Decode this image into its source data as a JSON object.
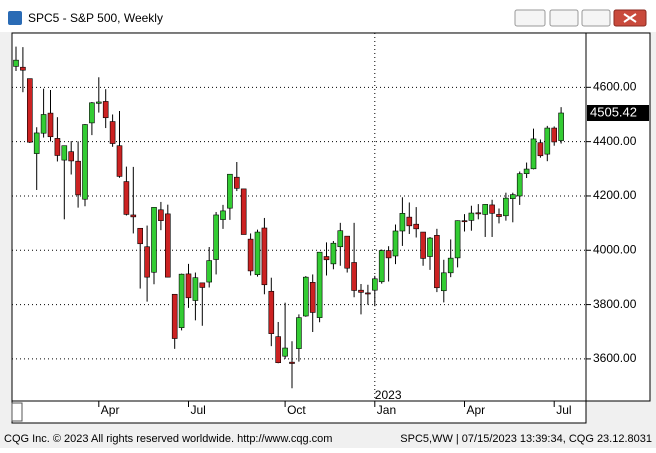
{
  "window_title": "SPC5 - S&P 500, Weekly",
  "chart_data": {
    "type": "candlestick",
    "categories": [
      null,
      null,
      null,
      null,
      null,
      null,
      null,
      null,
      null,
      null,
      null,
      null,
      "Apr",
      null,
      null,
      null,
      null,
      null,
      null,
      null,
      null,
      null,
      null,
      null,
      null,
      "Jul",
      null,
      null,
      null,
      null,
      null,
      null,
      null,
      null,
      null,
      null,
      null,
      null,
      null,
      "Oct",
      null,
      null,
      null,
      null,
      null,
      null,
      null,
      null,
      null,
      null,
      null,
      null,
      "Jan",
      null,
      null,
      null,
      null,
      null,
      null,
      null,
      null,
      null,
      null,
      null,
      null,
      "Apr",
      null,
      null,
      null,
      null,
      null,
      null,
      null,
      null,
      null,
      null,
      null,
      null,
      "Jul",
      null
    ],
    "open": [
      4677,
      4674,
      4632,
      4356,
      4431,
      4505,
      4412,
      4332,
      4363,
      4328,
      4188,
      4469,
      4541,
      4548,
      4474,
      4385,
      4253,
      4130,
      4081,
      4013,
      3919,
      4149,
      4134,
      3838,
      3715,
      3913,
      3815,
      3880,
      3883,
      3966,
      4113,
      4155,
      4269,
      4226,
      4041,
      3910,
      4082,
      3849,
      3682,
      3610,
      3588,
      3638,
      3758,
      3882,
      3752,
      3977,
      3950,
      4013,
      4052,
      3955,
      3853,
      3843,
      3853,
      3884,
      3999,
      3979,
      4071,
      4122,
      4096,
      4067,
      3977,
      4055,
      3851,
      3917,
      3972,
      4109,
      4110,
      4138,
      4132,
      4167,
      4132,
      4127,
      4190,
      4200,
      4282,
      4300,
      4396,
      4354,
      4450,
      4404
    ],
    "high": [
      4750,
      4748,
      4632,
      4453,
      4595,
      4590,
      4490,
      4385,
      4402,
      4401,
      4465,
      4546,
      4637,
      4593,
      4500,
      4513,
      4308,
      4307,
      4081,
      4091,
      4158,
      4178,
      4168,
      3838,
      3914,
      3950,
      3918,
      3880,
      4012,
      4141,
      4167,
      4280,
      4325,
      4226,
      4062,
      4076,
      4119,
      3899,
      3736,
      3807,
      3665,
      3764,
      3905,
      3911,
      3993,
      4029,
      4034,
      4101,
      4052,
      4101,
      3876,
      3873,
      3906,
      4003,
      4015,
      4095,
      4195,
      4176,
      4159,
      4067,
      4049,
      4079,
      3965,
      4040,
      4110,
      4133,
      4164,
      4170,
      4170,
      4186,
      4154,
      4212,
      4212,
      4290,
      4323,
      4448,
      4408,
      4458,
      4456,
      4527
    ],
    "low": [
      4660,
      4582,
      4395,
      4222,
      4415,
      4401,
      4327,
      4114,
      4279,
      4157,
      4162,
      4424,
      4507,
      4450,
      4381,
      4267,
      4128,
      4062,
      3859,
      3811,
      3875,
      4074,
      3900,
      3637,
      3705,
      3788,
      3742,
      3722,
      3863,
      3911,
      4079,
      4112,
      4218,
      4058,
      3907,
      3903,
      3838,
      3647,
      3584,
      3600,
      3492,
      3590,
      3755,
      3699,
      3735,
      3907,
      3930,
      3943,
      3918,
      3827,
      3764,
      3800,
      3794,
      3877,
      3885,
      3949,
      4016,
      4060,
      4047,
      3943,
      3928,
      3846,
      3808,
      3901,
      3937,
      4069,
      4072,
      4114,
      4049,
      4049,
      4099,
      4109,
      4103,
      4167,
      4266,
      4298,
      4341,
      4328,
      4385,
      4393
    ],
    "close": [
      4700,
      4663,
      4398,
      4432,
      4500,
      4418,
      4349,
      4385,
      4329,
      4204,
      4463,
      4543,
      4546,
      4488,
      4393,
      4272,
      4132,
      4123,
      4024,
      3901,
      4158,
      4109,
      3901,
      3675,
      3912,
      3825,
      3899,
      3863,
      3962,
      4130,
      4145,
      4280,
      4228,
      4058,
      3924,
      4067,
      3873,
      3693,
      3586,
      3640,
      3583,
      3752,
      3901,
      3771,
      3993,
      3965,
      4026,
      4072,
      3934,
      3852,
      3845,
      3839,
      3895,
      3999,
      3972,
      4071,
      4136,
      4090,
      4079,
      3970,
      4045,
      3862,
      3917,
      3971,
      4109,
      4105,
      4137,
      4134,
      4169,
      4136,
      4124,
      4192,
      4205,
      4282,
      4299,
      4410,
      4348,
      4450,
      4399,
      4505.42
    ],
    "up_color": "#33cc33",
    "down_color": "#cc2222",
    "ylim": [
      3445,
      4800
    ],
    "yticks": [
      {
        "value": 3600,
        "label": "3600.00"
      },
      {
        "value": 3800,
        "label": "3800.00"
      },
      {
        "value": 4000,
        "label": "4000.00"
      },
      {
        "value": 4200,
        "label": "4200.00"
      },
      {
        "value": 4400,
        "label": "4400.00"
      },
      {
        "value": 4600,
        "label": "4600.00"
      }
    ],
    "last": {
      "value": 4505.42,
      "label": "4505.42"
    },
    "year_label": "2023",
    "grid": true
  },
  "footer": {
    "left": "CQG Inc. © 2023 All rights reserved worldwide. http://www.cqg.com",
    "right": "SPC5,WW | 07/15/2023 13:39:34, CQG 23.12.8031"
  }
}
